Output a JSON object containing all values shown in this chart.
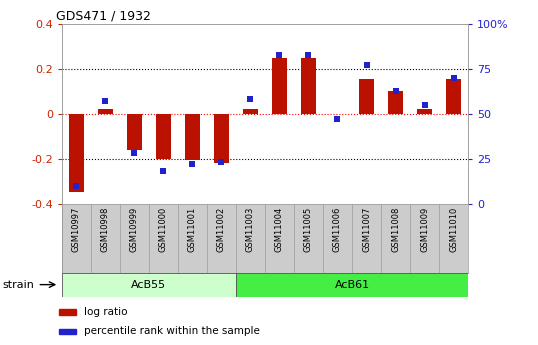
{
  "title": "GDS471 / 1932",
  "samples": [
    "GSM10997",
    "GSM10998",
    "GSM10999",
    "GSM11000",
    "GSM11001",
    "GSM11002",
    "GSM11003",
    "GSM11004",
    "GSM11005",
    "GSM11006",
    "GSM11007",
    "GSM11008",
    "GSM11009",
    "GSM11010"
  ],
  "log_ratio": [
    -0.35,
    0.02,
    -0.16,
    -0.2,
    -0.205,
    -0.22,
    0.02,
    0.25,
    0.25,
    0.0,
    0.155,
    0.1,
    0.02,
    0.155
  ],
  "percentile": [
    10,
    57,
    28,
    18,
    22,
    23,
    58,
    83,
    83,
    47,
    77,
    63,
    55,
    70
  ],
  "groups": [
    {
      "label": "AcB55",
      "start": 0,
      "end": 5,
      "color": "#AAFFAA"
    },
    {
      "label": "AcB61",
      "start": 6,
      "end": 13,
      "color": "#44DD44"
    }
  ],
  "ylim_left": [
    -0.4,
    0.4
  ],
  "ylim_right": [
    0,
    100
  ],
  "yticks_left": [
    -0.4,
    -0.2,
    0.0,
    0.2,
    0.4
  ],
  "ytick_labels_left": [
    "-0.4",
    "-0.2",
    "0",
    "0.2",
    "0.4"
  ],
  "yticks_right": [
    0,
    25,
    50,
    75,
    100
  ],
  "ytick_labels_right": [
    "0",
    "25",
    "50",
    "75",
    "100%"
  ],
  "hlines_dotted": [
    0.2,
    -0.2
  ],
  "hline_red": 0.0,
  "bar_color": "#BB1100",
  "scatter_color": "#2222CC",
  "plot_bg": "#FFFFFF",
  "strain_label": "strain",
  "legend_items": [
    {
      "label": "log ratio",
      "color": "#BB1100"
    },
    {
      "label": "percentile rank within the sample",
      "color": "#2222CC"
    }
  ],
  "left_tick_color": "#CC2200",
  "right_tick_color": "#2222CC",
  "label_box_color": "#CCCCCC",
  "acb55_color": "#CCFFCC",
  "acb61_color": "#44EE44"
}
